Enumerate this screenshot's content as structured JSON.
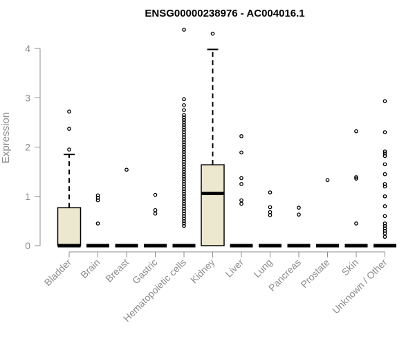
{
  "chart_data": {
    "type": "boxplot",
    "title": "ENSG00000238976 - AC004016.1",
    "xlabel": "",
    "ylabel": "Expression",
    "ylim": [
      0,
      4.4
    ],
    "yticks": [
      0,
      1,
      2,
      3,
      4
    ],
    "grid": false,
    "legend": "none",
    "colors": {
      "box_fill": "#ece7cf",
      "stroke": "#000000",
      "axis": "#8c8c8c"
    },
    "categories": [
      "Bladder",
      "Brain",
      "Breast",
      "Gastric",
      "Hematopoietic cells",
      "Kidney",
      "Liver",
      "Lung",
      "Pancreas",
      "Prostate",
      "Skin",
      "Unknown / Other"
    ],
    "boxes": [
      {
        "q1": 0,
        "median": 0,
        "q3": 0.77,
        "whisker_low": 0,
        "whisker_high": 1.85,
        "outliers": [
          1.95,
          2.37,
          2.72
        ]
      },
      {
        "q1": 0,
        "median": 0,
        "q3": 0,
        "whisker_low": 0,
        "whisker_high": 0,
        "outliers": [
          0.45,
          0.92,
          0.97,
          1.02
        ]
      },
      {
        "q1": 0,
        "median": 0,
        "q3": 0,
        "whisker_low": 0,
        "whisker_high": 0,
        "outliers": [
          1.54
        ]
      },
      {
        "q1": 0,
        "median": 0,
        "q3": 0,
        "whisker_low": 0,
        "whisker_high": 0,
        "outliers": [
          0.65,
          0.72,
          1.03
        ]
      },
      {
        "q1": 0,
        "median": 0,
        "q3": 0,
        "whisker_low": 0,
        "whisker_high": 0,
        "outliers": [
          0.4,
          0.45,
          0.5,
          0.55,
          0.6,
          0.65,
          0.7,
          0.75,
          0.8,
          0.85,
          0.9,
          0.95,
          1.0,
          1.05,
          1.1,
          1.15,
          1.2,
          1.25,
          1.3,
          1.35,
          1.4,
          1.45,
          1.5,
          1.55,
          1.6,
          1.65,
          1.7,
          1.75,
          1.8,
          1.85,
          1.9,
          1.95,
          2.0,
          2.05,
          2.1,
          2.15,
          2.2,
          2.25,
          2.3,
          2.35,
          2.4,
          2.45,
          2.5,
          2.55,
          2.6,
          2.65,
          2.75,
          2.85,
          2.97,
          4.38
        ]
      },
      {
        "q1": 0,
        "median": 1.06,
        "q3": 1.64,
        "whisker_low": 0,
        "whisker_high": 3.98,
        "outliers": [
          4.3
        ]
      },
      {
        "q1": 0,
        "median": 0,
        "q3": 0,
        "whisker_low": 0,
        "whisker_high": 0,
        "outliers": [
          0.85,
          0.92,
          1.25,
          1.37,
          1.89,
          2.22
        ]
      },
      {
        "q1": 0,
        "median": 0,
        "q3": 0,
        "whisker_low": 0,
        "whisker_high": 0,
        "outliers": [
          0.62,
          0.68,
          0.78,
          1.08
        ]
      },
      {
        "q1": 0,
        "median": 0,
        "q3": 0,
        "whisker_low": 0,
        "whisker_high": 0,
        "outliers": [
          0.63,
          0.77
        ]
      },
      {
        "q1": 0,
        "median": 0,
        "q3": 0,
        "whisker_low": 0,
        "whisker_high": 0,
        "outliers": [
          1.33
        ]
      },
      {
        "q1": 0,
        "median": 0,
        "q3": 0,
        "whisker_low": 0,
        "whisker_high": 0,
        "outliers": [
          0.45,
          1.36,
          1.39,
          2.32
        ]
      },
      {
        "q1": 0,
        "median": 0,
        "q3": 0,
        "whisker_low": 0,
        "whisker_high": 0,
        "outliers": [
          0.18,
          0.25,
          0.3,
          0.35,
          0.4,
          0.45,
          0.6,
          0.8,
          1.0,
          1.2,
          1.25,
          1.45,
          1.65,
          1.82,
          1.87,
          1.91,
          2.3,
          2.93
        ]
      }
    ]
  }
}
